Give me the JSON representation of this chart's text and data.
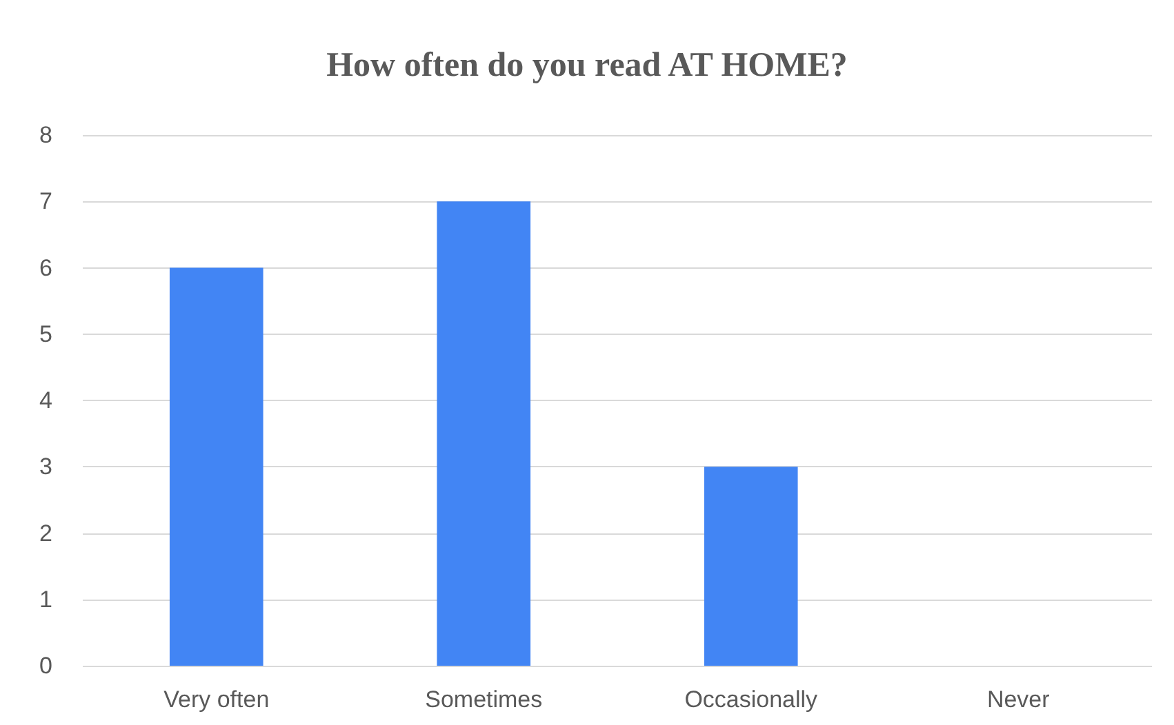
{
  "chart_data": {
    "type": "bar",
    "title": "How often do you read AT HOME?",
    "categories": [
      "Very often",
      "Sometimes",
      "Occasionally",
      "Never"
    ],
    "values": [
      6,
      7,
      3,
      0
    ],
    "color": "#4285f4",
    "ylim": [
      0,
      8
    ],
    "yticks": [
      0,
      1,
      2,
      3,
      4,
      5,
      6,
      7,
      8
    ],
    "grid": "y"
  }
}
